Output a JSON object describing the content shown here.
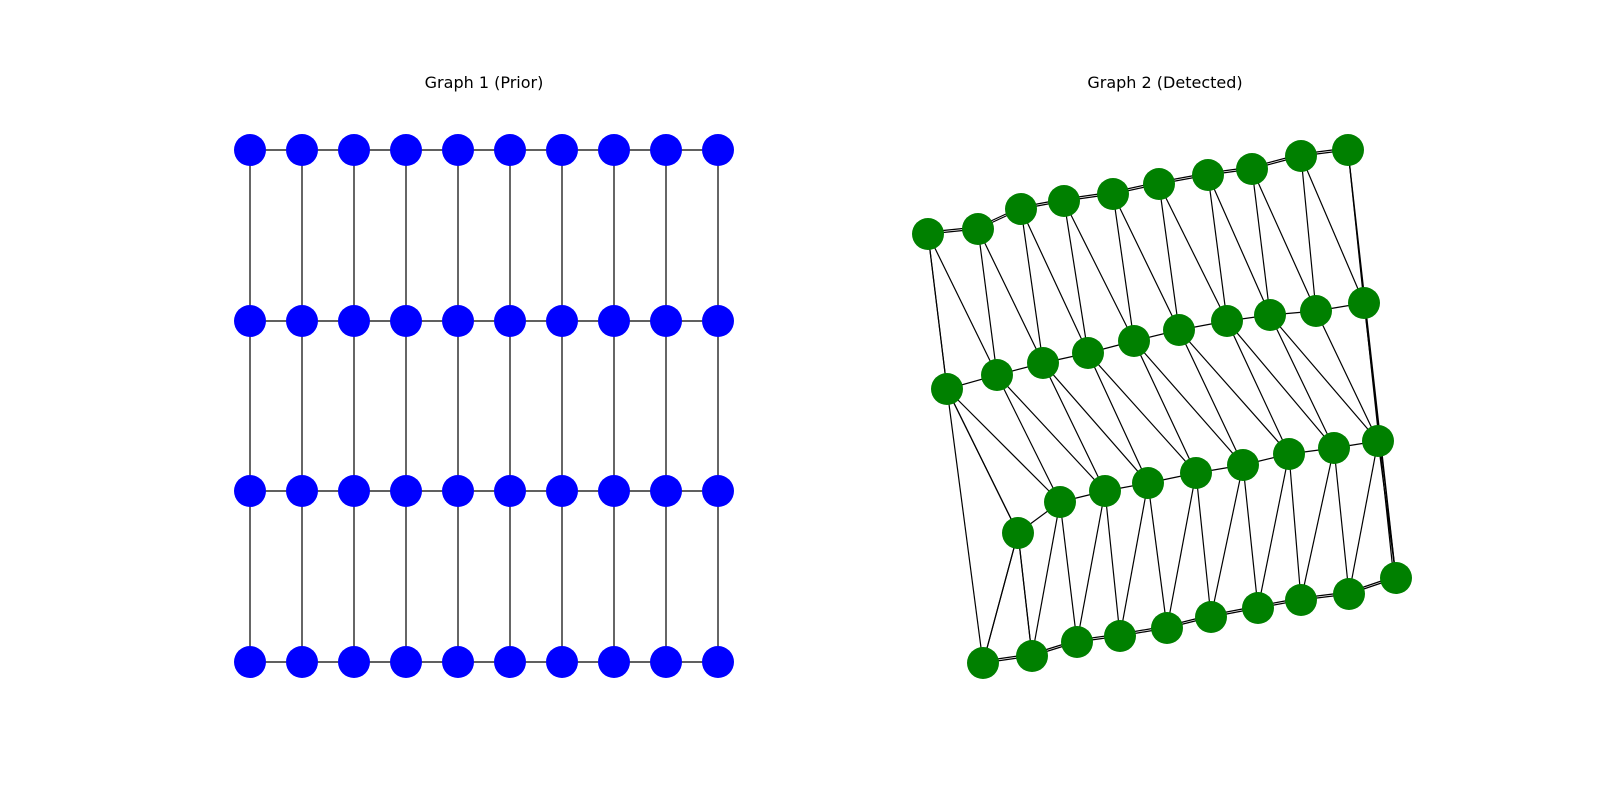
{
  "panels": [
    {
      "title": "Graph 1 (Prior)",
      "node_color": "#0000ff",
      "rows": 4,
      "cols": 10,
      "edges": "grid-4x10"
    },
    {
      "title": "Graph 2 (Detected)",
      "node_color": "#008000",
      "rows": 4,
      "cols": 10,
      "edges": "grid-plus-diagonals"
    }
  ],
  "colors": {
    "background": "#ffffff",
    "edge": "#000000"
  }
}
